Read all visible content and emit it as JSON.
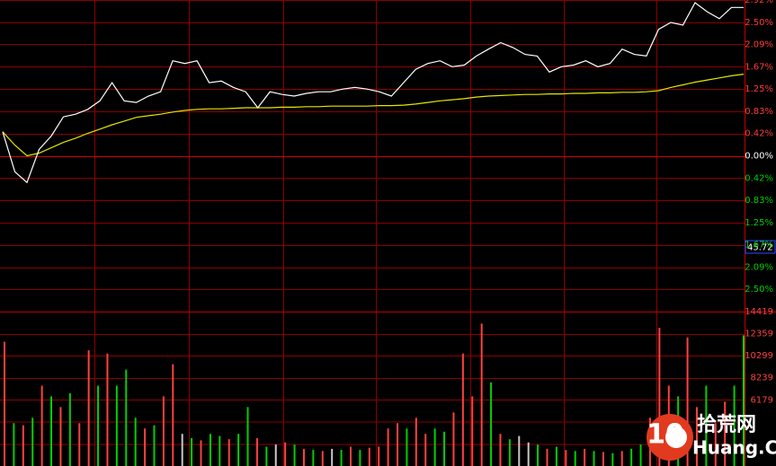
{
  "chart_data": {
    "type": "intraday",
    "price": {
      "ylim": [
        -2.92,
        2.92
      ],
      "yticks": [
        {
          "value": 2.92,
          "label": "2.92%"
        },
        {
          "value": 2.5,
          "label": "2.50%"
        },
        {
          "value": 2.09,
          "label": "2.09%"
        },
        {
          "value": 1.67,
          "label": "1.67%"
        },
        {
          "value": 1.25,
          "label": "1.25%"
        },
        {
          "value": 0.83,
          "label": "0.83%"
        },
        {
          "value": 0.42,
          "label": "0.42%"
        },
        {
          "value": 0,
          "label": "0.00%"
        },
        {
          "value": -0.42,
          "label": "0.42%"
        },
        {
          "value": -0.83,
          "label": "0.83%"
        },
        {
          "value": -1.25,
          "label": "1.25%"
        },
        {
          "value": -1.67,
          "label": "1.67%"
        },
        {
          "value": -2.09,
          "label": "2.09%"
        },
        {
          "value": -2.5,
          "label": "2.50%"
        }
      ],
      "up_color": "#ff3c3c",
      "down_color": "#00d000",
      "flat_color": "#ffffff",
      "grid_color": "#8a0000",
      "series": [
        {
          "name": "price",
          "color": "#ffffff",
          "values": [
            0.45,
            -0.3,
            -0.5,
            0.12,
            0.37,
            0.73,
            0.78,
            0.87,
            1.03,
            1.37,
            1.03,
            1.0,
            1.12,
            1.2,
            1.78,
            1.73,
            1.78,
            1.37,
            1.4,
            1.28,
            1.2,
            0.9,
            1.2,
            1.15,
            1.12,
            1.17,
            1.2,
            1.2,
            1.25,
            1.28,
            1.25,
            1.2,
            1.12,
            1.37,
            1.62,
            1.73,
            1.78,
            1.67,
            1.7,
            1.87,
            2.0,
            2.12,
            2.03,
            1.9,
            1.87,
            1.57,
            1.67,
            1.7,
            1.78,
            1.67,
            1.73,
            2.0,
            1.9,
            1.87,
            2.37,
            2.5,
            2.45,
            2.87,
            2.7,
            2.57,
            2.78,
            2.78
          ]
        },
        {
          "name": "average",
          "color": "#e6e600",
          "values": [
            0.45,
            0.2,
            0.0,
            0.05,
            0.15,
            0.25,
            0.33,
            0.42,
            0.5,
            0.58,
            0.65,
            0.72,
            0.75,
            0.78,
            0.82,
            0.85,
            0.87,
            0.88,
            0.88,
            0.89,
            0.9,
            0.9,
            0.9,
            0.91,
            0.91,
            0.92,
            0.92,
            0.93,
            0.93,
            0.93,
            0.93,
            0.94,
            0.94,
            0.95,
            0.97,
            1.0,
            1.03,
            1.05,
            1.07,
            1.1,
            1.12,
            1.13,
            1.14,
            1.15,
            1.15,
            1.16,
            1.16,
            1.17,
            1.17,
            1.18,
            1.18,
            1.19,
            1.19,
            1.2,
            1.22,
            1.28,
            1.33,
            1.38,
            1.42,
            1.46,
            1.5,
            1.53
          ]
        }
      ],
      "price_tag": "45.72"
    },
    "volume": {
      "ylim": [
        0,
        14419
      ],
      "yticks": [
        14419,
        12359,
        10299,
        8239,
        6179
      ],
      "values": [
        11600,
        4000,
        3800,
        4500,
        7500,
        6500,
        5500,
        6800,
        4000,
        10800,
        7500,
        10500,
        7500,
        9000,
        4500,
        3500,
        3800,
        6500,
        9500,
        3000,
        2600,
        2400,
        3000,
        2800,
        2500,
        3000,
        5500,
        2600,
        1800,
        2000,
        2200,
        2000,
        1600,
        1500,
        1400,
        1600,
        1500,
        1800,
        1500,
        1700,
        1800,
        3500,
        4000,
        3500,
        4500,
        3000,
        3500,
        3200,
        5000,
        10500,
        6500,
        13300,
        7800,
        3000,
        2500,
        2800,
        2200,
        2000,
        1600,
        1800,
        1500,
        1400,
        1600,
        1400,
        1300,
        1200,
        1400,
        1600,
        2000,
        4500,
        12900,
        7500,
        6500,
        12000,
        5500,
        7500,
        4000,
        6000,
        7500,
        12200
      ],
      "colors": [
        "#ff4040",
        "#00d000",
        "#ff4040",
        "#00d000",
        "#ff4040",
        "#00d000",
        "#ff4040",
        "#00d000",
        "#ff4040",
        "#ff4040",
        "#00d000",
        "#ff4040",
        "#00d000",
        "#00d000",
        "#00d000",
        "#ff4040",
        "#00d000",
        "#ff4040",
        "#ff4040",
        "#c8c8c8",
        "#00d000",
        "#ff4040",
        "#00d000",
        "#00d000",
        "#ff4040",
        "#00d000",
        "#00d000",
        "#ff4040",
        "#00d000",
        "#c8c8c8",
        "#ff4040",
        "#00d000",
        "#ff4040",
        "#00d000",
        "#ff4040",
        "#c8c8c8",
        "#00d000",
        "#ff4040",
        "#00d000",
        "#ff4040",
        "#ff4040",
        "#ff4040",
        "#ff4040",
        "#00d000",
        "#ff4040",
        "#ff4040",
        "#00d000",
        "#00d000",
        "#ff4040",
        "#ff4040",
        "#ff4040",
        "#ff4040",
        "#00d000",
        "#ff4040",
        "#00d000",
        "#c8c8c8",
        "#c8c8c8",
        "#00d000",
        "#ff4040",
        "#00d000",
        "#ff4040",
        "#00d000",
        "#ff4040",
        "#00d000",
        "#ff4040",
        "#00d000",
        "#ff4040",
        "#00d000",
        "#00d000",
        "#ff4040",
        "#ff4040",
        "#ff4040",
        "#00d000",
        "#ff4040",
        "#ff4040",
        "#00d000",
        "#ff4040",
        "#ff4040",
        "#00d000",
        "#00d000"
      ],
      "tick_color": "#ff4040"
    },
    "watermark": {
      "number": "10",
      "name": "拾荒网",
      "site": "Huang.CN"
    }
  }
}
